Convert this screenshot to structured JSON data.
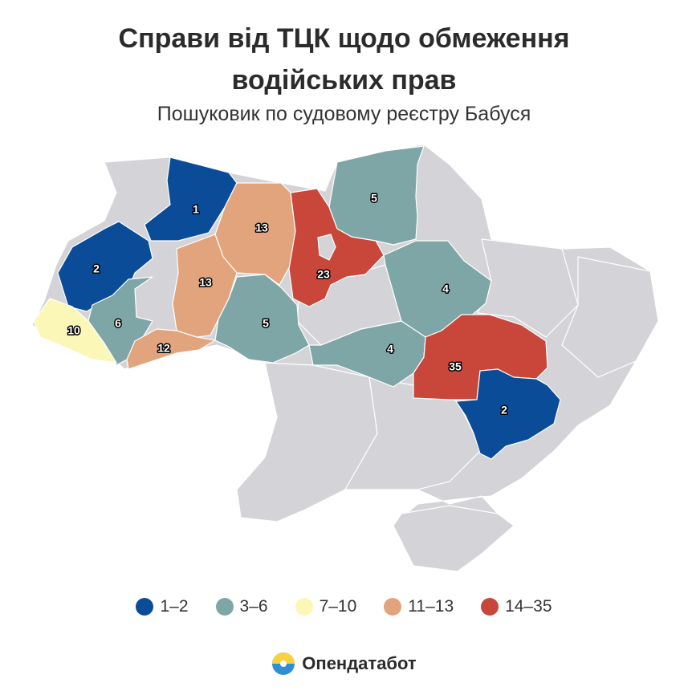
{
  "title_line1": "Справи від ТЦК щодо обмеження",
  "title_line2": "водійських прав",
  "subtitle": "Пошуковик по судовому реєстру Бабуся",
  "colors": {
    "bin_1_2": "#0a4c97",
    "bin_3_6": "#7fa6a6",
    "bin_7_10": "#fbf7b6",
    "bin_11_13": "#e2a47c",
    "bin_14_35": "#c9463a",
    "no_data": "#d4d4d8",
    "border": "#ffffff"
  },
  "legend": [
    {
      "label": "1–2",
      "color": "#0a4c97"
    },
    {
      "label": "3–6",
      "color": "#7fa6a6"
    },
    {
      "label": "7–10",
      "color": "#fbf7b6"
    },
    {
      "label": "11–13",
      "color": "#e2a47c"
    },
    {
      "label": "14–35",
      "color": "#c9463a"
    }
  ],
  "regions": [
    {
      "name": "Волинська",
      "value": "1"
    },
    {
      "name": "Рівненська",
      "value": "13"
    },
    {
      "name": "Житомирська",
      "value": "13"
    },
    {
      "name": "Львівська",
      "value": "2"
    },
    {
      "name": "Тернопільська",
      "value": "6"
    },
    {
      "name": "Хмельницька",
      "value": "13"
    },
    {
      "name": "Закарпатська",
      "value": "10"
    },
    {
      "name": "Чернівецька",
      "value": "12"
    },
    {
      "name": "Вінницька",
      "value": "5"
    },
    {
      "name": "Київська",
      "value": "23"
    },
    {
      "name": "Чернігівська",
      "value": "5"
    },
    {
      "name": "Полтавська",
      "value": "4"
    },
    {
      "name": "Кіровоградська",
      "value": "4"
    },
    {
      "name": "Дніпропетровська",
      "value": "35"
    },
    {
      "name": "Запорізька",
      "value": "2"
    }
  ],
  "brand": {
    "name": "Опендатабот"
  }
}
